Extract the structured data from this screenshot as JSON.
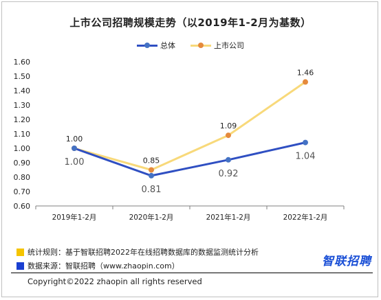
{
  "chart_data": {
    "type": "line",
    "title": "上市公司招聘规模走势（以2019年1-2月为基数）",
    "categories": [
      "2019年1-2月",
      "2020年1-2月",
      "2021年1-2月",
      "2022年1-2月"
    ],
    "series": [
      {
        "name": "总体",
        "values": [
          1.0,
          0.81,
          0.92,
          1.04
        ],
        "color": "#2f4fc2"
      },
      {
        "name": "上市公司",
        "values": [
          1.0,
          0.85,
          1.09,
          1.46
        ],
        "color": "#f8d97a",
        "marker_color": "#e58a3c"
      }
    ],
    "ylim": [
      0.6,
      1.6
    ],
    "yticks": [
      "0.60",
      "0.70",
      "0.80",
      "0.90",
      "1.00",
      "1.10",
      "1.20",
      "1.30",
      "1.40",
      "1.50",
      "1.60"
    ],
    "xlabel": "",
    "ylabel": "",
    "grid": false,
    "legend": "top-center"
  },
  "notes": {
    "method": "统计规则：基于智联招聘2022年在线招聘数据库的数据监测统计分析",
    "source": "数据来源：智联招聘（www.zhaopin.com）",
    "method_color": "#f5c400",
    "source_color": "#1a3fd1"
  },
  "brand": "智联招聘",
  "copyright": "Copyright©2022 zhaopin all rights reserved"
}
